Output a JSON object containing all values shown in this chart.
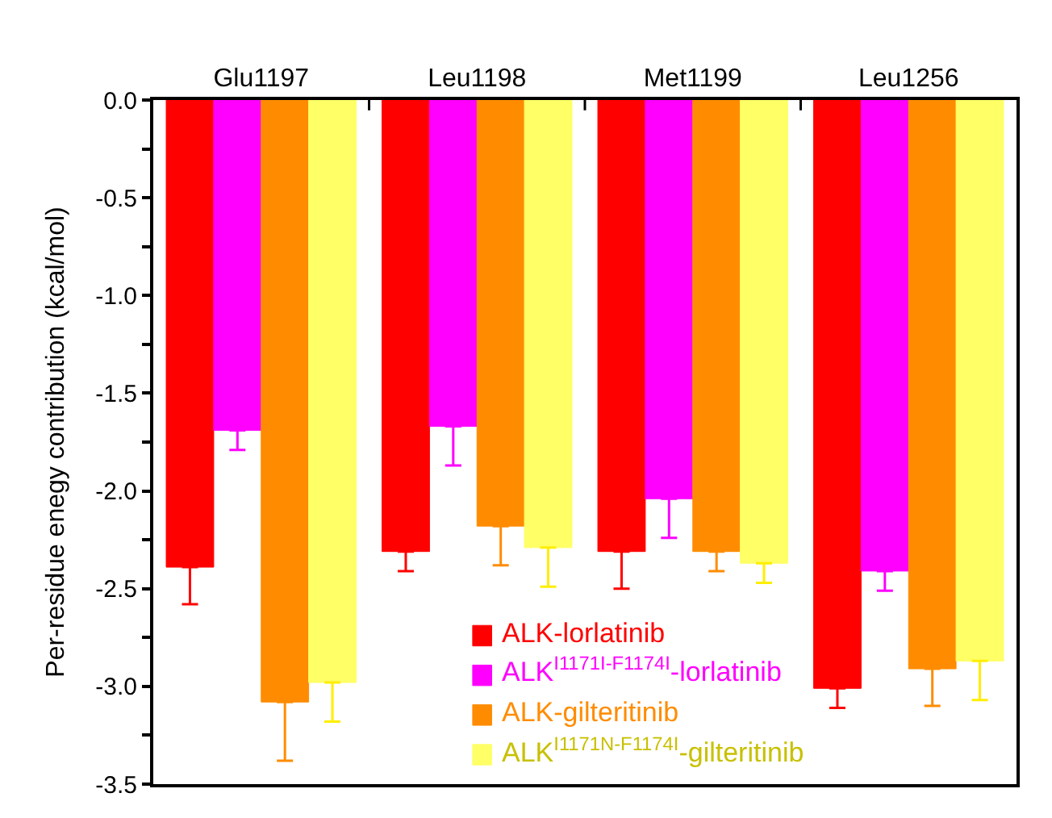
{
  "chart_data": {
    "type": "bar",
    "ylabel": "Per-residue enegy contribution (kcal/mol)",
    "categories": [
      "Glu1197",
      "Leu1198",
      "Met1199",
      "Leu1256"
    ],
    "series": [
      {
        "name": "ALK-lorlatinib",
        "color": "#ff0000",
        "values": [
          -2.39,
          -2.31,
          -2.31,
          -3.01
        ],
        "errors": [
          [
            -2.58,
            -2.39
          ],
          [
            -2.41,
            -2.31
          ],
          [
            -2.5,
            -2.31
          ],
          [
            -3.11,
            -3.01
          ]
        ]
      },
      {
        "name": "ALK$^{I1171I-F1174I}$-lorlatinib",
        "color": "#ff00ff",
        "values": [
          -1.69,
          -1.67,
          -2.04,
          -2.41
        ],
        "errors": [
          [
            -1.79,
            -1.69
          ],
          [
            -1.87,
            -1.67
          ],
          [
            -2.24,
            -2.04
          ],
          [
            -2.51,
            -2.41
          ]
        ]
      },
      {
        "name": "ALK-gilteritinib",
        "color": "#ff8c00",
        "values": [
          -3.08,
          -2.18,
          -2.31,
          -2.91
        ],
        "errors": [
          [
            -3.38,
            -3.08
          ],
          [
            -2.38,
            -2.18
          ],
          [
            -2.41,
            -2.31
          ],
          [
            -3.1,
            -2.91
          ]
        ]
      },
      {
        "name": "ALK$^{I1171N-F1174I}$-gilteritinib",
        "color": "#ffff66",
        "values": [
          -2.98,
          -2.29,
          -2.37,
          -2.87
        ],
        "errors": [
          [
            -3.18,
            -2.98
          ],
          [
            -2.49,
            -2.29
          ],
          [
            -2.47,
            -2.37
          ],
          [
            -3.07,
            -2.87
          ]
        ]
      }
    ],
    "ylim": [
      -3.5,
      0
    ],
    "yticks": [
      {
        "value": 0,
        "label": "0.0"
      },
      {
        "value": -0.25,
        "label": null
      },
      -0.5,
      {
        "value": -0.75,
        "label": null
      },
      {
        "value": -1,
        "label": "-1.0"
      },
      {
        "value": -1.25,
        "label": null
      },
      -1.5,
      {
        "value": -1.75,
        "label": null
      },
      {
        "value": -2,
        "label": "-2.0"
      },
      {
        "value": -2.25,
        "label": null
      },
      -2.5,
      {
        "value": -2.75,
        "label": null
      },
      {
        "value": -3,
        "label": "-3.0"
      },
      {
        "value": -3.25,
        "label": null
      },
      -3.5
    ],
    "legend": "bottom"
  }
}
